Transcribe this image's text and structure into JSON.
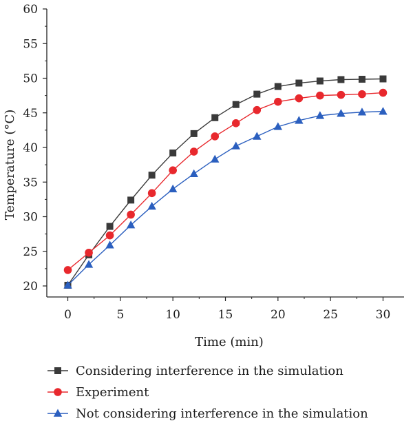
{
  "chart_data": {
    "type": "line",
    "xlabel": "Time (min)",
    "ylabel": "Temperature (°C)",
    "xlim": [
      -2,
      32
    ],
    "ylim": [
      20,
      60
    ],
    "xticks": [
      0,
      5,
      10,
      15,
      20,
      25,
      30
    ],
    "yticks": [
      20,
      25,
      30,
      35,
      40,
      45,
      50,
      55,
      60
    ],
    "grid": false,
    "legend_position": "bottom",
    "x": [
      0,
      2,
      4,
      6,
      8,
      10,
      12,
      14,
      16,
      18,
      20,
      22,
      24,
      26,
      28,
      30
    ],
    "series": [
      {
        "name": "Considering interference in the simulation",
        "color": "#3a3a3a",
        "marker": "square",
        "values": [
          20.1,
          24.5,
          28.6,
          32.4,
          36.0,
          39.2,
          42.0,
          44.3,
          46.2,
          47.7,
          48.8,
          49.3,
          49.6,
          49.8,
          49.85,
          49.9
        ]
      },
      {
        "name": "Experiment",
        "color": "#e8282d",
        "marker": "circle",
        "values": [
          22.3,
          24.8,
          27.3,
          30.3,
          33.4,
          36.7,
          39.4,
          41.6,
          43.5,
          45.4,
          46.6,
          47.1,
          47.5,
          47.6,
          47.7,
          47.9
        ]
      },
      {
        "name": "Not considering interference in the simulation",
        "color": "#2b5fbf",
        "marker": "triangle",
        "values": [
          20.1,
          23.1,
          25.9,
          28.8,
          31.5,
          34.0,
          36.2,
          38.3,
          40.2,
          41.6,
          43.0,
          43.9,
          44.6,
          44.9,
          45.1,
          45.2
        ]
      }
    ]
  }
}
